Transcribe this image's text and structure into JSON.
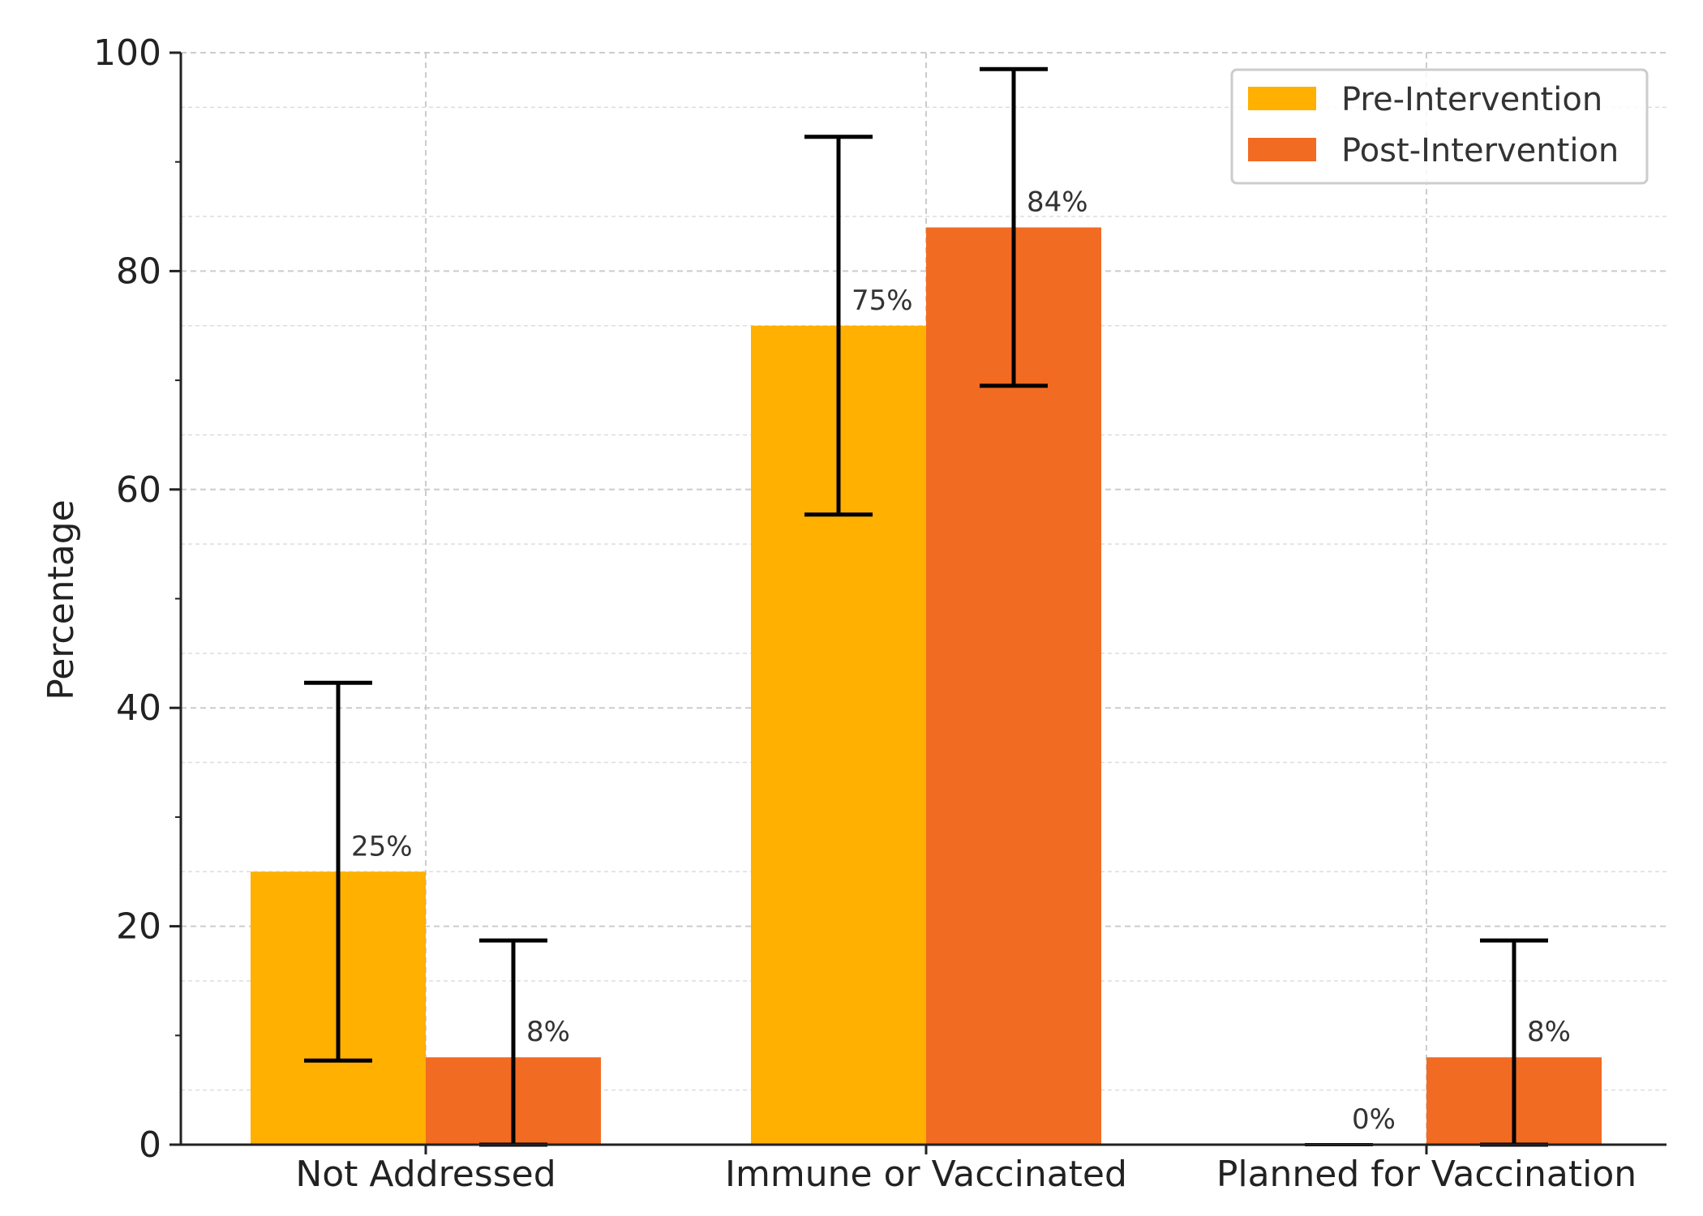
{
  "chart_data": {
    "type": "bar",
    "title": "",
    "xlabel": "",
    "ylabel": "Percentage",
    "ylim": [
      0,
      100
    ],
    "yticks": [
      "0",
      "20",
      "40",
      "60",
      "80",
      "100"
    ],
    "categories": [
      "Not Addressed",
      "Immune or Vaccinated",
      "Planned for Vaccination"
    ],
    "series": [
      {
        "name": "Pre-Intervention",
        "color": "#FFB000",
        "values": [
          25,
          75,
          0
        ],
        "labels": [
          "25%",
          "75%",
          "0%"
        ],
        "error_low": [
          7.7,
          57.7,
          0
        ],
        "error_high": [
          42.3,
          92.3,
          0
        ]
      },
      {
        "name": "Post-Intervention",
        "color": "#F26B22",
        "values": [
          8,
          84,
          8
        ],
        "labels": [
          "8%",
          "84%",
          "8%"
        ],
        "error_low": [
          0,
          69.5,
          0
        ],
        "error_high": [
          18.7,
          98.5,
          18.7
        ]
      }
    ],
    "grid": true,
    "legend_position": "top-right"
  }
}
